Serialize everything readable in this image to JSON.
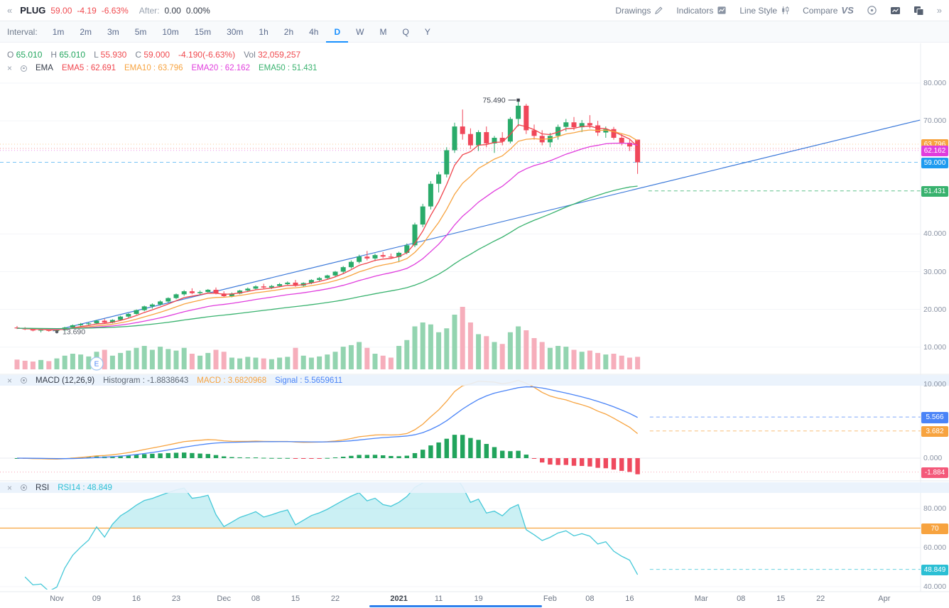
{
  "topbar": {
    "collapse_icon": "«",
    "expand_icon": "»",
    "symbol": "PLUG",
    "price": "59.00",
    "change": "-4.19",
    "change_pct": "-6.63%",
    "after_label": "After:",
    "after_value": "0.00",
    "after_pct": "0.00%",
    "drawings_label": "Drawings",
    "indicators_label": "Indicators",
    "line_style_label": "Line Style",
    "compare_label": "Compare",
    "compare_logo": "VS"
  },
  "interval": {
    "label": "Interval:",
    "options": [
      "1m",
      "2m",
      "3m",
      "5m",
      "10m",
      "15m",
      "30m",
      "1h",
      "2h",
      "4h",
      "D",
      "W",
      "M",
      "Q",
      "Y"
    ],
    "selected": "D"
  },
  "ohlc": {
    "fields": [
      {
        "label": "O",
        "value": "65.010",
        "dir": "up"
      },
      {
        "label": "H",
        "value": "65.010",
        "dir": "up"
      },
      {
        "label": "L",
        "value": "55.930",
        "dir": "down"
      },
      {
        "label": "C",
        "value": "59.000",
        "dir": "down"
      }
    ],
    "change_text": "-4.190(-6.63%)",
    "vol_label": "Vol",
    "vol_value": "32,059,257"
  },
  "indicator_headers": {
    "close_icon": "×",
    "ema": {
      "name": "EMA",
      "items": [
        {
          "text": "EMA5 : 62.691",
          "color": "#f0434b"
        },
        {
          "text": "EMA10 : 63.796",
          "color": "#f7a33f"
        },
        {
          "text": "EMA20 : 62.162",
          "color": "#e03ddd"
        },
        {
          "text": "EMA50 : 51.431",
          "color": "#38b26e"
        }
      ]
    },
    "macd": {
      "name": "MACD (12,26,9)",
      "items": [
        {
          "text": "Histogram : -1.8838643",
          "color": "#5e6773"
        },
        {
          "text": "MACD : 3.6820968",
          "color": "#f7a33f"
        },
        {
          "text": "Signal : 5.5659611",
          "color": "#4a84f7"
        }
      ]
    },
    "rsi": {
      "name": "RSI",
      "items": [
        {
          "text": "RSI14 : 48.849",
          "color": "#2bbfd4"
        }
      ]
    }
  },
  "chart_data": {
    "type": "candlestick",
    "symbol": "PLUG",
    "interval": "D",
    "price_ylim": [
      4,
      82
    ],
    "candles_ohlcv": [
      [
        15.2,
        15.6,
        14.8,
        15.0,
        25
      ],
      [
        15.0,
        15.3,
        14.5,
        14.7,
        22
      ],
      [
        14.7,
        15.0,
        14.2,
        14.4,
        20
      ],
      [
        14.4,
        14.8,
        13.9,
        14.6,
        24
      ],
      [
        14.6,
        14.9,
        14.1,
        14.3,
        21
      ],
      [
        14.3,
        14.6,
        13.69,
        14.5,
        28
      ],
      [
        14.5,
        15.4,
        14.3,
        15.2,
        35
      ],
      [
        15.2,
        16.0,
        15.0,
        15.8,
        40
      ],
      [
        15.8,
        16.4,
        15.3,
        16.1,
        38
      ],
      [
        16.1,
        16.6,
        15.7,
        16.3,
        33
      ],
      [
        16.3,
        17.2,
        16.0,
        17.0,
        45
      ],
      [
        17.0,
        17.5,
        16.2,
        16.5,
        50
      ],
      [
        16.5,
        17.4,
        16.3,
        17.2,
        35
      ],
      [
        17.2,
        18.3,
        17.0,
        18.1,
        42
      ],
      [
        18.1,
        19.0,
        17.8,
        18.8,
        48
      ],
      [
        18.8,
        20.0,
        18.6,
        19.8,
        55
      ],
      [
        19.8,
        21.0,
        19.5,
        20.8,
        60
      ],
      [
        20.8,
        21.6,
        20.2,
        21.3,
        50
      ],
      [
        21.3,
        22.4,
        21.0,
        22.1,
        58
      ],
      [
        22.1,
        23.2,
        21.8,
        23.0,
        52
      ],
      [
        23.0,
        24.2,
        22.7,
        24.0,
        48
      ],
      [
        24.0,
        25.1,
        23.6,
        24.8,
        55
      ],
      [
        24.8,
        25.6,
        24.0,
        24.3,
        40
      ],
      [
        24.3,
        25.0,
        23.8,
        24.6,
        35
      ],
      [
        24.6,
        25.4,
        24.2,
        25.2,
        42
      ],
      [
        25.2,
        25.8,
        24.0,
        24.2,
        50
      ],
      [
        24.2,
        24.8,
        23.2,
        23.5,
        45
      ],
      [
        23.5,
        24.5,
        23.2,
        24.2,
        30
      ],
      [
        24.2,
        25.2,
        24.0,
        25.0,
        28
      ],
      [
        25.0,
        25.8,
        24.6,
        25.5,
        32
      ],
      [
        25.5,
        26.4,
        25.2,
        26.1,
        30
      ],
      [
        26.1,
        26.8,
        25.5,
        25.8,
        28
      ],
      [
        25.8,
        26.5,
        25.4,
        26.2,
        26
      ],
      [
        26.2,
        27.0,
        25.9,
        26.7,
        30
      ],
      [
        26.7,
        27.4,
        26.3,
        27.1,
        32
      ],
      [
        27.1,
        27.8,
        26.0,
        26.3,
        55
      ],
      [
        26.3,
        27.2,
        26.0,
        27.0,
        35
      ],
      [
        27.0,
        28.0,
        26.7,
        27.8,
        30
      ],
      [
        27.8,
        28.6,
        27.4,
        28.3,
        33
      ],
      [
        28.3,
        29.2,
        28.0,
        29.0,
        38
      ],
      [
        29.0,
        30.2,
        28.6,
        30.0,
        45
      ],
      [
        30.0,
        31.5,
        29.6,
        31.2,
        58
      ],
      [
        31.2,
        33.0,
        30.8,
        32.6,
        62
      ],
      [
        32.6,
        34.5,
        32.2,
        34.0,
        70
      ],
      [
        34.0,
        35.5,
        33.0,
        33.5,
        55
      ],
      [
        33.5,
        34.8,
        32.8,
        34.4,
        40
      ],
      [
        34.4,
        35.2,
        33.6,
        34.0,
        35
      ],
      [
        34.0,
        34.8,
        33.4,
        33.9,
        30
      ],
      [
        33.9,
        35.3,
        32.5,
        35.0,
        60
      ],
      [
        35.0,
        37.5,
        34.6,
        37.0,
        75
      ],
      [
        37.0,
        43.0,
        36.5,
        42.5,
        110
      ],
      [
        42.5,
        48.0,
        41.8,
        47.3,
        120
      ],
      [
        47.3,
        54.0,
        46.5,
        53.3,
        115
      ],
      [
        53.3,
        56.5,
        51.0,
        55.8,
        95
      ],
      [
        55.8,
        63.0,
        55.0,
        62.2,
        105
      ],
      [
        62.2,
        69.5,
        61.5,
        68.5,
        140
      ],
      [
        68.5,
        73.0,
        65.0,
        66.5,
        160
      ],
      [
        66.5,
        68.0,
        62.5,
        63.5,
        120
      ],
      [
        63.5,
        67.5,
        62.0,
        67.0,
        90
      ],
      [
        67.0,
        68.5,
        63.0,
        64.0,
        85
      ],
      [
        64.0,
        66.0,
        61.5,
        65.5,
        70
      ],
      [
        65.5,
        67.0,
        63.5,
        64.5,
        65
      ],
      [
        64.5,
        71.0,
        64.0,
        70.5,
        95
      ],
      [
        70.5,
        75.49,
        68.5,
        74.0,
        110
      ],
      [
        74.0,
        74.5,
        66.5,
        67.5,
        100
      ],
      [
        67.5,
        69.0,
        65.0,
        66.0,
        80
      ],
      [
        66.0,
        67.5,
        63.5,
        64.3,
        70
      ],
      [
        64.3,
        66.8,
        63.0,
        66.0,
        55
      ],
      [
        66.0,
        69.0,
        65.0,
        68.4,
        60
      ],
      [
        68.4,
        70.5,
        67.2,
        69.6,
        58
      ],
      [
        69.6,
        71.0,
        67.5,
        68.3,
        50
      ],
      [
        68.3,
        70.2,
        67.0,
        69.4,
        45
      ],
      [
        69.4,
        71.5,
        68.0,
        68.8,
        48
      ],
      [
        68.8,
        70.0,
        66.0,
        66.9,
        42
      ],
      [
        66.9,
        68.5,
        65.5,
        67.8,
        38
      ],
      [
        67.8,
        68.4,
        65.0,
        65.5,
        40
      ],
      [
        65.5,
        66.5,
        63.5,
        64.2,
        35
      ],
      [
        64.2,
        65.0,
        62.0,
        63.19,
        30
      ],
      [
        65.01,
        65.01,
        55.93,
        59.0,
        32
      ]
    ],
    "x_ticks": [
      {
        "t": "Nov",
        "i": 5
      },
      {
        "t": "09",
        "i": 10
      },
      {
        "t": "16",
        "i": 15
      },
      {
        "t": "23",
        "i": 20
      },
      {
        "t": "Dec",
        "i": 26
      },
      {
        "t": "08",
        "i": 30
      },
      {
        "t": "15",
        "i": 35
      },
      {
        "t": "22",
        "i": 40
      },
      {
        "t": "2021",
        "i": 48
      },
      {
        "t": "11",
        "i": 53
      },
      {
        "t": "19",
        "i": 58
      },
      {
        "t": "Feb",
        "i": 67
      },
      {
        "t": "08",
        "i": 72
      },
      {
        "t": "16",
        "i": 77
      },
      {
        "t": "Mar",
        "i": 86
      },
      {
        "t": "08",
        "i": 91
      },
      {
        "t": "15",
        "i": 96
      },
      {
        "t": "22",
        "i": 101
      },
      {
        "t": "Apr",
        "i": 109
      }
    ],
    "price_axis_labels": [
      {
        "v": 80,
        "t": "80.000"
      },
      {
        "v": 70,
        "t": "70.000"
      },
      {
        "v": 40,
        "t": "40.000"
      },
      {
        "v": 30,
        "t": "30.000"
      },
      {
        "v": 20,
        "t": "20.000"
      },
      {
        "v": 10,
        "t": "10.000"
      }
    ],
    "price_tags": [
      {
        "v": 62.691,
        "t": "62.691",
        "color": "#f0434b",
        "line": "dot"
      },
      {
        "v": 63.796,
        "t": "63.796",
        "color": "#f7a33f",
        "line": "dot"
      },
      {
        "v": 62.162,
        "t": "62.162",
        "color": "#e03ddd",
        "line": "dot"
      },
      {
        "v": 59.0,
        "t": "59.000",
        "color": "#1e9bf0",
        "line": "dash"
      },
      {
        "v": 51.431,
        "t": "51.431",
        "color": "#38b26e",
        "line": "dash_right"
      }
    ],
    "ema_overlays": [
      {
        "period": 5,
        "color": "#f0434b"
      },
      {
        "period": 10,
        "color": "#f7a33f"
      },
      {
        "period": 20,
        "color": "#e03ddd"
      },
      {
        "period": 50,
        "color": "#38b26e"
      }
    ],
    "trendline": {
      "i1": 4.5,
      "p1": 14.3,
      "i2": 113.5,
      "p2": 70.2,
      "color": "#3a78d9"
    },
    "annotations": {
      "high_label": "75.490",
      "high_index": 63,
      "high_value": 75.49,
      "low_label": "13.690",
      "low_index": 5,
      "low_value": 13.69,
      "event_label": "E",
      "event_index": 10
    },
    "macd": {
      "params": [
        12,
        26,
        9
      ],
      "axis_labels": [
        {
          "v": 10,
          "t": "10.000"
        },
        {
          "v": 0,
          "t": "0.000"
        }
      ],
      "tags": [
        {
          "v": 5.566,
          "t": "5.566",
          "color": "#4a84f7"
        },
        {
          "v": 3.682,
          "t": "3.682",
          "color": "#f7a33f"
        },
        {
          "v": -1.884,
          "t": "-1.884",
          "color": "#f4597a"
        }
      ]
    },
    "rsi": {
      "period": 14,
      "overbought_level": 70,
      "axis_labels": [
        {
          "v": 80,
          "t": "80.000"
        },
        {
          "v": 60,
          "t": "60.000"
        },
        {
          "v": 40,
          "t": "40.000"
        }
      ],
      "tags": [
        {
          "v": 70,
          "t": "70",
          "color": "#f7a33f"
        },
        {
          "v": 48.849,
          "t": "48.849",
          "color": "#2bbfd4"
        }
      ]
    },
    "colors": {
      "up": "#2aab6a",
      "down": "#f0475a",
      "vol_up": "#93d4b0",
      "vol_down": "#f6aebb",
      "hist_up": "#21a45c",
      "hist_down": "#ef4a5e",
      "macd_line": "#f7a33f",
      "signal_line": "#4a84f7",
      "rsi_line": "#45c8d8",
      "rsi_fill": "rgba(69,200,216,0.28)",
      "overbought": "#f7a33f",
      "trend": "#3a78d9",
      "grid": "#f3f5f8"
    }
  }
}
